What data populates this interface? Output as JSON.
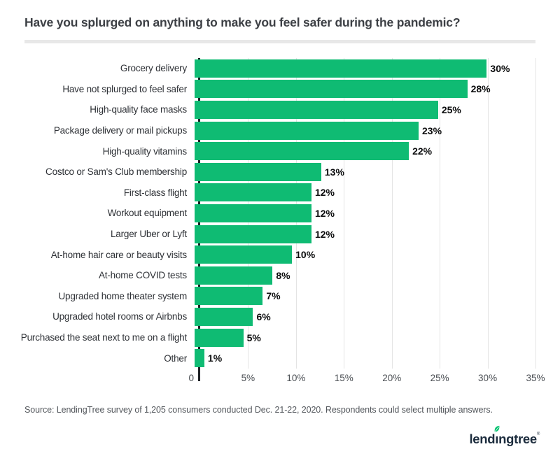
{
  "header": {
    "title": "Have you splurged on anything to make you feel safer during the pandemic?"
  },
  "chart_data": {
    "type": "bar",
    "orientation": "horizontal",
    "title": "Have you splurged on anything to make you feel safer during the pandemic?",
    "categories": [
      "Grocery delivery",
      "Have not splurged to feel safer",
      "High-quality face masks",
      "Package delivery or mail pickups",
      "High-quality vitamins",
      "Costco or Sam's Club membership",
      "First-class flight",
      "Workout equipment",
      "Larger Uber or Lyft",
      "At-home hair care or beauty visits",
      "At-home COVID tests",
      "Upgraded home theater system",
      "Upgraded hotel rooms or Airbnbs",
      "Purchased the seat next to me on a flight",
      "Other"
    ],
    "values": [
      30,
      28,
      25,
      23,
      22,
      13,
      12,
      12,
      12,
      10,
      8,
      7,
      6,
      5,
      1
    ],
    "value_labels": [
      "30%",
      "28%",
      "25%",
      "23%",
      "22%",
      "13%",
      "12%",
      "12%",
      "12%",
      "10%",
      "8%",
      "7%",
      "6%",
      "5%",
      "1%"
    ],
    "xlim": [
      0,
      35
    ],
    "x_ticks": [
      {
        "value": 0,
        "label": "0"
      },
      {
        "value": 5,
        "label": "5%"
      },
      {
        "value": 10,
        "label": "10%"
      },
      {
        "value": 15,
        "label": "15%"
      },
      {
        "value": 20,
        "label": "20%"
      },
      {
        "value": 25,
        "label": "25%"
      },
      {
        "value": 30,
        "label": "30%"
      },
      {
        "value": 35,
        "label": "35%"
      }
    ],
    "grid": true,
    "legend": false,
    "bar_color": "#0fbb73",
    "grid_color": "#e4e4e4",
    "axis_color": "#1f2226"
  },
  "footer": {
    "source": "Source: LendingTree survey of 1,205 consumers conducted Dec. 21-22, 2020. Respondents could select multiple answers.",
    "logo_text": "lendingtree",
    "logo_leaf_color": "#00c16e"
  }
}
